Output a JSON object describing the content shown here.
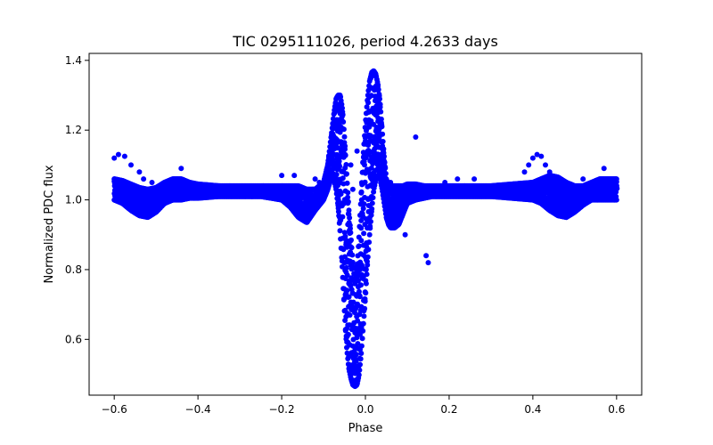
{
  "chart_data": {
    "type": "scatter",
    "title": "TIC 0295111026, period 4.2633 days",
    "xlabel": "Phase",
    "ylabel": "Normalized PDC flux",
    "xlim": [
      -0.66,
      0.66
    ],
    "ylim": [
      0.44,
      1.42
    ],
    "xticks": [
      -0.6,
      -0.4,
      -0.2,
      0.0,
      0.2,
      0.4,
      0.6
    ],
    "xtick_labels": [
      "−0.6",
      "−0.4",
      "−0.2",
      "0.0",
      "0.2",
      "0.4",
      "0.6"
    ],
    "yticks": [
      0.6,
      0.8,
      1.0,
      1.2,
      1.4
    ],
    "ytick_labels": [
      "0.6",
      "0.8",
      "1.0",
      "1.2",
      "1.4"
    ],
    "grid": false,
    "legend": "none",
    "marker_color": "#0000ff",
    "band_series": {
      "x": [
        -0.6,
        -0.58,
        -0.56,
        -0.54,
        -0.52,
        -0.5,
        -0.48,
        -0.46,
        -0.44,
        -0.42,
        -0.4,
        -0.35,
        -0.3,
        -0.25,
        -0.2,
        -0.18,
        -0.16,
        -0.14,
        -0.12,
        -0.1,
        -0.09,
        -0.08,
        -0.075,
        -0.07,
        -0.065,
        -0.06,
        -0.055,
        -0.05,
        -0.045,
        -0.04,
        -0.035,
        -0.03,
        -0.025,
        -0.02,
        -0.015,
        -0.01,
        -0.005,
        0.0,
        0.005,
        0.01,
        0.015,
        0.02,
        0.025,
        0.03,
        0.035,
        0.04,
        0.045,
        0.05,
        0.055,
        0.06,
        0.07,
        0.08,
        0.09,
        0.1,
        0.12,
        0.14,
        0.16,
        0.2,
        0.25,
        0.3,
        0.35,
        0.4,
        0.42,
        0.44,
        0.46,
        0.48,
        0.5,
        0.52,
        0.54,
        0.56,
        0.58,
        0.6
      ],
      "y_low": [
        1.0,
        0.99,
        0.97,
        0.955,
        0.95,
        0.965,
        0.99,
        1.0,
        1.0,
        1.005,
        1.005,
        1.01,
        1.01,
        1.01,
        1.0,
        0.98,
        0.95,
        0.935,
        0.97,
        1.0,
        1.03,
        1.07,
        1.06,
        1.03,
        0.98,
        0.9,
        0.8,
        0.68,
        0.58,
        0.52,
        0.49,
        0.47,
        0.465,
        0.47,
        0.5,
        0.56,
        0.64,
        0.72,
        0.82,
        0.9,
        0.97,
        1.03,
        1.06,
        1.07,
        1.06,
        1.03,
        0.99,
        0.95,
        0.93,
        0.92,
        0.92,
        0.93,
        0.96,
        0.99,
        1.0,
        1.005,
        1.01,
        1.01,
        1.01,
        1.01,
        1.005,
        1.0,
        0.99,
        0.97,
        0.955,
        0.95,
        0.965,
        0.985,
        1.0,
        1.0,
        1.0,
        1.0
      ],
      "y_high": [
        1.06,
        1.055,
        1.045,
        1.035,
        1.03,
        1.035,
        1.05,
        1.06,
        1.06,
        1.05,
        1.045,
        1.04,
        1.04,
        1.04,
        1.04,
        1.04,
        1.04,
        1.03,
        1.03,
        1.05,
        1.1,
        1.2,
        1.25,
        1.29,
        1.3,
        1.3,
        1.26,
        1.18,
        1.08,
        0.98,
        0.9,
        0.82,
        0.76,
        0.8,
        0.9,
        1.02,
        1.13,
        1.22,
        1.29,
        1.34,
        1.365,
        1.37,
        1.36,
        1.33,
        1.28,
        1.2,
        1.12,
        1.06,
        1.04,
        1.04,
        1.04,
        1.04,
        1.04,
        1.045,
        1.045,
        1.04,
        1.04,
        1.04,
        1.04,
        1.04,
        1.045,
        1.05,
        1.06,
        1.07,
        1.065,
        1.05,
        1.04,
        1.04,
        1.05,
        1.06,
        1.06,
        1.06
      ]
    },
    "outlier_points": [
      [
        -0.6,
        1.12
      ],
      [
        -0.59,
        1.13
      ],
      [
        -0.575,
        1.125
      ],
      [
        -0.56,
        1.1
      ],
      [
        -0.54,
        1.08
      ],
      [
        -0.53,
        1.06
      ],
      [
        -0.51,
        1.05
      ],
      [
        -0.44,
        1.09
      ],
      [
        -0.2,
        1.07
      ],
      [
        -0.17,
        1.07
      ],
      [
        -0.12,
        1.06
      ],
      [
        -0.11,
        1.05
      ],
      [
        -0.035,
        1.1
      ],
      [
        -0.03,
        1.03
      ],
      [
        -0.02,
        1.14
      ],
      [
        0.01,
        1.18
      ],
      [
        0.06,
        1.05
      ],
      [
        0.08,
        0.95
      ],
      [
        0.095,
        0.9
      ],
      [
        0.12,
        1.18
      ],
      [
        0.145,
        0.84
      ],
      [
        0.15,
        0.82
      ],
      [
        0.19,
        1.05
      ],
      [
        0.22,
        1.06
      ],
      [
        0.26,
        1.06
      ],
      [
        0.37,
        1.04
      ],
      [
        0.38,
        1.08
      ],
      [
        0.39,
        1.1
      ],
      [
        0.4,
        1.12
      ],
      [
        0.41,
        1.13
      ],
      [
        0.42,
        1.125
      ],
      [
        0.43,
        1.1
      ],
      [
        0.44,
        1.08
      ],
      [
        0.45,
        1.06
      ],
      [
        0.5,
        1.04
      ],
      [
        0.52,
        1.06
      ],
      [
        0.57,
        1.09
      ],
      [
        0.58,
        1.05
      ]
    ]
  }
}
